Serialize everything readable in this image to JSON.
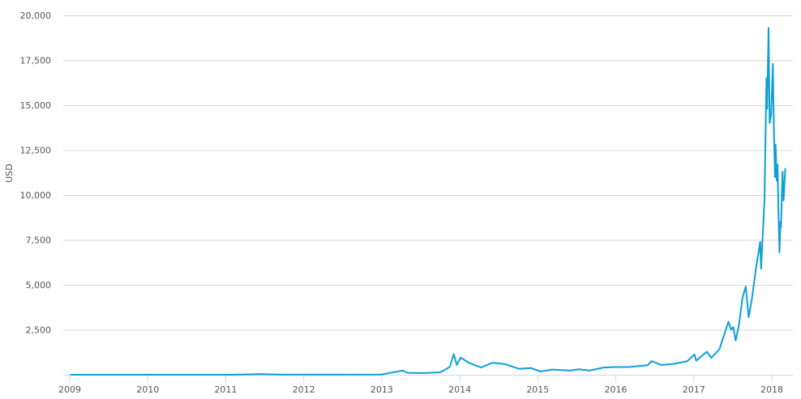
{
  "chart_data": {
    "type": "line",
    "title": "",
    "xlabel": "",
    "ylabel": "USD",
    "ylim": [
      0,
      20000
    ],
    "xlim": [
      "2009-01-01",
      "2018-03-31"
    ],
    "grid": "horizontal",
    "line_color": "#0e9fd8",
    "y_ticks": [
      "2,500",
      "5,000",
      "7,500",
      "10,000",
      "12,500",
      "15,000",
      "17,500",
      "20,000"
    ],
    "y_tick_values": [
      2500,
      5000,
      7500,
      10000,
      12500,
      15000,
      17500,
      20000
    ],
    "x_ticks": [
      "2009",
      "2010",
      "2011",
      "2012",
      "2013",
      "2014",
      "2015",
      "2016",
      "2017",
      "2018"
    ],
    "series": [
      {
        "points": [
          [
            "2009-01-03",
            0
          ],
          [
            "2010-07-01",
            0.1
          ],
          [
            "2011-02-01",
            1
          ],
          [
            "2011-06-08",
            30
          ],
          [
            "2011-10-01",
            5
          ],
          [
            "2012-06-01",
            6
          ],
          [
            "2012-12-31",
            13
          ],
          [
            "2013-04-09",
            230
          ],
          [
            "2013-05-01",
            110
          ],
          [
            "2013-07-01",
            90
          ],
          [
            "2013-10-01",
            130
          ],
          [
            "2013-11-15",
            430
          ],
          [
            "2013-12-04",
            1150
          ],
          [
            "2013-12-18",
            550
          ],
          [
            "2014-01-05",
            950
          ],
          [
            "2014-02-15",
            650
          ],
          [
            "2014-04-10",
            400
          ],
          [
            "2014-06-03",
            660
          ],
          [
            "2014-08-01",
            590
          ],
          [
            "2014-10-05",
            330
          ],
          [
            "2014-12-01",
            370
          ],
          [
            "2015-01-14",
            180
          ],
          [
            "2015-03-10",
            290
          ],
          [
            "2015-06-01",
            230
          ],
          [
            "2015-07-12",
            300
          ],
          [
            "2015-09-01",
            230
          ],
          [
            "2015-11-04",
            400
          ],
          [
            "2016-01-01",
            430
          ],
          [
            "2016-03-01",
            430
          ],
          [
            "2016-05-30",
            530
          ],
          [
            "2016-06-17",
            760
          ],
          [
            "2016-08-02",
            540
          ],
          [
            "2016-10-01",
            610
          ],
          [
            "2016-12-01",
            750
          ],
          [
            "2017-01-04",
            1130
          ],
          [
            "2017-01-12",
            780
          ],
          [
            "2017-03-03",
            1280
          ],
          [
            "2017-03-24",
            940
          ],
          [
            "2017-05-01",
            1420
          ],
          [
            "2017-06-12",
            2950
          ],
          [
            "2017-06-25",
            2500
          ],
          [
            "2017-07-05",
            2650
          ],
          [
            "2017-07-16",
            1900
          ],
          [
            "2017-08-01",
            2800
          ],
          [
            "2017-08-17",
            4300
          ],
          [
            "2017-09-01",
            4900
          ],
          [
            "2017-09-15",
            3200
          ],
          [
            "2017-10-01",
            4300
          ],
          [
            "2017-10-20",
            6000
          ],
          [
            "2017-11-08",
            7400
          ],
          [
            "2017-11-12",
            5900
          ],
          [
            "2017-11-28",
            9800
          ],
          [
            "2017-12-07",
            16500
          ],
          [
            "2017-12-10",
            14800
          ],
          [
            "2017-12-17",
            19300
          ],
          [
            "2017-12-22",
            14000
          ],
          [
            "2017-12-29",
            14500
          ],
          [
            "2018-01-06",
            17300
          ],
          [
            "2018-01-10",
            14000
          ],
          [
            "2018-01-16",
            11000
          ],
          [
            "2018-01-19",
            12800
          ],
          [
            "2018-01-24",
            10800
          ],
          [
            "2018-01-28",
            11700
          ],
          [
            "2018-02-01",
            9000
          ],
          [
            "2018-02-06",
            6800
          ],
          [
            "2018-02-10",
            8500
          ],
          [
            "2018-02-13",
            8200
          ],
          [
            "2018-02-20",
            11300
          ],
          [
            "2018-02-25",
            9700
          ],
          [
            "2018-03-05",
            11500
          ]
        ]
      }
    ]
  }
}
